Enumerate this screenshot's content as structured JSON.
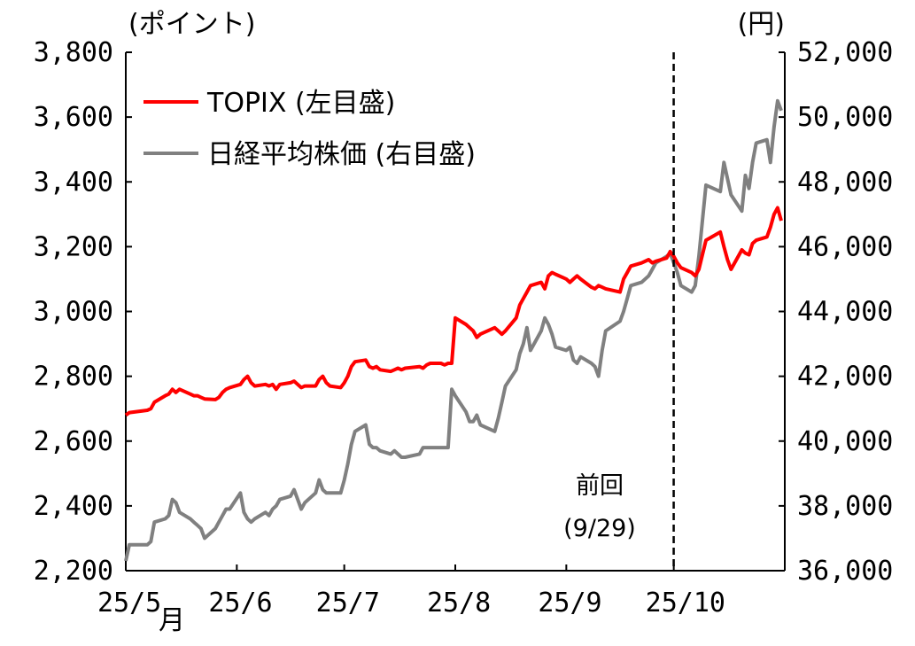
{
  "chart_data": {
    "type": "line",
    "left_unit": "(ポイント)",
    "right_unit": "(円)",
    "left_axis": {
      "ylim": [
        2200,
        3800
      ],
      "ticks": [
        "2,200",
        "2,400",
        "2,600",
        "2,800",
        "3,000",
        "3,200",
        "3,400",
        "3,600",
        "3,800"
      ]
    },
    "right_axis": {
      "ylim": [
        36000,
        52000
      ],
      "ticks": [
        "36,000",
        "38,000",
        "40,000",
        "42,000",
        "44,000",
        "46,000",
        "48,000",
        "50,000",
        "52,000"
      ]
    },
    "x_ticks": [
      {
        "label": "25/5",
        "suffix": "月",
        "date": "2025-05-01"
      },
      {
        "label": "25/6",
        "suffix": "",
        "date": "2025-06-01"
      },
      {
        "label": "25/7",
        "suffix": "",
        "date": "2025-07-01"
      },
      {
        "label": "25/8",
        "suffix": "",
        "date": "2025-08-01"
      },
      {
        "label": "25/9",
        "suffix": "",
        "date": "2025-09-01"
      },
      {
        "label": "25/10",
        "suffix": "",
        "date": "2025-10-01"
      }
    ],
    "x_range": [
      "2025-05-01",
      "2025-10-31"
    ],
    "grid": false,
    "legend_position": "top-left",
    "marker": {
      "date": "2025-09-29",
      "label": "前回",
      "sublabel": "(9/29)"
    },
    "series": [
      {
        "name": "TOPIX (左目盛)",
        "axis": "left",
        "color": "#ff0000",
        "points": [
          [
            "2025-05-01",
            2680
          ],
          [
            "2025-05-02",
            2688
          ],
          [
            "2025-05-07",
            2695
          ],
          [
            "2025-05-08",
            2700
          ],
          [
            "2025-05-09",
            2720
          ],
          [
            "2025-05-12",
            2740
          ],
          [
            "2025-05-13",
            2745
          ],
          [
            "2025-05-14",
            2760
          ],
          [
            "2025-05-15",
            2750
          ],
          [
            "2025-05-16",
            2760
          ],
          [
            "2025-05-19",
            2745
          ],
          [
            "2025-05-20",
            2740
          ],
          [
            "2025-05-21",
            2740
          ],
          [
            "2025-05-22",
            2735
          ],
          [
            "2025-05-23",
            2730
          ],
          [
            "2025-05-26",
            2728
          ],
          [
            "2025-05-27",
            2735
          ],
          [
            "2025-05-28",
            2750
          ],
          [
            "2025-05-29",
            2760
          ],
          [
            "2025-05-30",
            2765
          ],
          [
            "2025-06-02",
            2775
          ],
          [
            "2025-06-03",
            2790
          ],
          [
            "2025-06-04",
            2800
          ],
          [
            "2025-06-05",
            2780
          ],
          [
            "2025-06-06",
            2770
          ],
          [
            "2025-06-09",
            2775
          ],
          [
            "2025-06-10",
            2770
          ],
          [
            "2025-06-11",
            2775
          ],
          [
            "2025-06-12",
            2760
          ],
          [
            "2025-06-13",
            2775
          ],
          [
            "2025-06-16",
            2780
          ],
          [
            "2025-06-17",
            2785
          ],
          [
            "2025-06-18",
            2775
          ],
          [
            "2025-06-19",
            2765
          ],
          [
            "2025-06-20",
            2770
          ],
          [
            "2025-06-23",
            2770
          ],
          [
            "2025-06-24",
            2790
          ],
          [
            "2025-06-25",
            2800
          ],
          [
            "2025-06-26",
            2780
          ],
          [
            "2025-06-27",
            2770
          ],
          [
            "2025-06-30",
            2765
          ],
          [
            "2025-07-01",
            2780
          ],
          [
            "2025-07-02",
            2800
          ],
          [
            "2025-07-03",
            2830
          ],
          [
            "2025-07-04",
            2845
          ],
          [
            "2025-07-07",
            2850
          ],
          [
            "2025-07-08",
            2830
          ],
          [
            "2025-07-09",
            2825
          ],
          [
            "2025-07-10",
            2830
          ],
          [
            "2025-07-11",
            2820
          ],
          [
            "2025-07-14",
            2815
          ],
          [
            "2025-07-15",
            2820
          ],
          [
            "2025-07-16",
            2825
          ],
          [
            "2025-07-17",
            2820
          ],
          [
            "2025-07-18",
            2825
          ],
          [
            "2025-07-22",
            2830
          ],
          [
            "2025-07-23",
            2825
          ],
          [
            "2025-07-24",
            2835
          ],
          [
            "2025-07-25",
            2840
          ],
          [
            "2025-07-28",
            2840
          ],
          [
            "2025-07-29",
            2835
          ],
          [
            "2025-07-30",
            2840
          ],
          [
            "2025-07-31",
            2840
          ],
          [
            "2025-08-01",
            2980
          ],
          [
            "2025-08-04",
            2960
          ],
          [
            "2025-08-05",
            2950
          ],
          [
            "2025-08-06",
            2940
          ],
          [
            "2025-08-07",
            2920
          ],
          [
            "2025-08-08",
            2930
          ],
          [
            "2025-08-12",
            2950
          ],
          [
            "2025-08-13",
            2940
          ],
          [
            "2025-08-14",
            2930
          ],
          [
            "2025-08-15",
            2940
          ],
          [
            "2025-08-18",
            2980
          ],
          [
            "2025-08-19",
            3020
          ],
          [
            "2025-08-20",
            3040
          ],
          [
            "2025-08-21",
            3060
          ],
          [
            "2025-08-22",
            3080
          ],
          [
            "2025-08-25",
            3090
          ],
          [
            "2025-08-26",
            3070
          ],
          [
            "2025-08-27",
            3110
          ],
          [
            "2025-08-28",
            3120
          ],
          [
            "2025-08-29",
            3115
          ],
          [
            "2025-09-01",
            3100
          ],
          [
            "2025-09-02",
            3090
          ],
          [
            "2025-09-03",
            3100
          ],
          [
            "2025-09-04",
            3110
          ],
          [
            "2025-09-05",
            3100
          ],
          [
            "2025-09-08",
            3075
          ],
          [
            "2025-09-09",
            3070
          ],
          [
            "2025-09-10",
            3080
          ],
          [
            "2025-09-11",
            3075
          ],
          [
            "2025-09-12",
            3070
          ],
          [
            "2025-09-16",
            3060
          ],
          [
            "2025-09-17",
            3100
          ],
          [
            "2025-09-18",
            3120
          ],
          [
            "2025-09-19",
            3140
          ],
          [
            "2025-09-22",
            3150
          ],
          [
            "2025-09-24",
            3160
          ],
          [
            "2025-09-25",
            3150
          ],
          [
            "2025-09-26",
            3155
          ],
          [
            "2025-09-29",
            3165
          ],
          [
            "2025-09-30",
            3185
          ],
          [
            "2025-10-01",
            3170
          ],
          [
            "2025-10-02",
            3150
          ],
          [
            "2025-10-03",
            3135
          ],
          [
            "2025-10-06",
            3120
          ],
          [
            "2025-10-07",
            3110
          ],
          [
            "2025-10-08",
            3130
          ],
          [
            "2025-10-09",
            3175
          ],
          [
            "2025-10-10",
            3220
          ],
          [
            "2025-10-14",
            3245
          ],
          [
            "2025-10-15",
            3200
          ],
          [
            "2025-10-16",
            3160
          ],
          [
            "2025-10-17",
            3130
          ],
          [
            "2025-10-20",
            3190
          ],
          [
            "2025-10-21",
            3180
          ],
          [
            "2025-10-22",
            3175
          ],
          [
            "2025-10-23",
            3210
          ],
          [
            "2025-10-24",
            3220
          ],
          [
            "2025-10-27",
            3230
          ],
          [
            "2025-10-28",
            3260
          ],
          [
            "2025-10-29",
            3300
          ],
          [
            "2025-10-30",
            3320
          ],
          [
            "2025-10-31",
            3280
          ]
        ]
      },
      {
        "name": "日経平均株価 (右目盛)",
        "axis": "right",
        "color": "#808080",
        "points": [
          [
            "2025-05-01",
            36300
          ],
          [
            "2025-05-02",
            36800
          ],
          [
            "2025-05-07",
            36800
          ],
          [
            "2025-05-08",
            36900
          ],
          [
            "2025-05-09",
            37500
          ],
          [
            "2025-05-12",
            37600
          ],
          [
            "2025-05-13",
            37700
          ],
          [
            "2025-05-14",
            38200
          ],
          [
            "2025-05-15",
            38100
          ],
          [
            "2025-05-16",
            37800
          ],
          [
            "2025-05-19",
            37600
          ],
          [
            "2025-05-20",
            37500
          ],
          [
            "2025-05-21",
            37400
          ],
          [
            "2025-05-22",
            37300
          ],
          [
            "2025-05-23",
            37000
          ],
          [
            "2025-05-26",
            37300
          ],
          [
            "2025-05-27",
            37500
          ],
          [
            "2025-05-28",
            37700
          ],
          [
            "2025-05-29",
            37900
          ],
          [
            "2025-05-30",
            37900
          ],
          [
            "2025-06-02",
            38400
          ],
          [
            "2025-06-03",
            37800
          ],
          [
            "2025-06-04",
            37600
          ],
          [
            "2025-06-05",
            37500
          ],
          [
            "2025-06-06",
            37600
          ],
          [
            "2025-06-09",
            37800
          ],
          [
            "2025-06-10",
            37700
          ],
          [
            "2025-06-11",
            37900
          ],
          [
            "2025-06-12",
            38000
          ],
          [
            "2025-06-13",
            38200
          ],
          [
            "2025-06-16",
            38300
          ],
          [
            "2025-06-17",
            38500
          ],
          [
            "2025-06-18",
            38200
          ],
          [
            "2025-06-19",
            37900
          ],
          [
            "2025-06-20",
            38100
          ],
          [
            "2025-06-23",
            38400
          ],
          [
            "2025-06-24",
            38800
          ],
          [
            "2025-06-25",
            38500
          ],
          [
            "2025-06-26",
            38400
          ],
          [
            "2025-06-27",
            38400
          ],
          [
            "2025-06-30",
            38400
          ],
          [
            "2025-07-01",
            38800
          ],
          [
            "2025-07-02",
            39300
          ],
          [
            "2025-07-03",
            39900
          ],
          [
            "2025-07-04",
            40300
          ],
          [
            "2025-07-07",
            40500
          ],
          [
            "2025-07-08",
            39900
          ],
          [
            "2025-07-09",
            39800
          ],
          [
            "2025-07-10",
            39800
          ],
          [
            "2025-07-11",
            39700
          ],
          [
            "2025-07-14",
            39600
          ],
          [
            "2025-07-15",
            39700
          ],
          [
            "2025-07-16",
            39600
          ],
          [
            "2025-07-17",
            39500
          ],
          [
            "2025-07-18",
            39500
          ],
          [
            "2025-07-22",
            39600
          ],
          [
            "2025-07-23",
            39800
          ],
          [
            "2025-07-24",
            39800
          ],
          [
            "2025-07-25",
            39800
          ],
          [
            "2025-07-28",
            39800
          ],
          [
            "2025-07-29",
            39800
          ],
          [
            "2025-07-30",
            39800
          ],
          [
            "2025-07-31",
            41600
          ],
          [
            "2025-08-01",
            41400
          ],
          [
            "2025-08-04",
            40900
          ],
          [
            "2025-08-05",
            40600
          ],
          [
            "2025-08-06",
            40600
          ],
          [
            "2025-08-07",
            40800
          ],
          [
            "2025-08-08",
            40500
          ],
          [
            "2025-08-12",
            40300
          ],
          [
            "2025-08-13",
            40700
          ],
          [
            "2025-08-14",
            41200
          ],
          [
            "2025-08-15",
            41700
          ],
          [
            "2025-08-18",
            42200
          ],
          [
            "2025-08-19",
            42700
          ],
          [
            "2025-08-20",
            43000
          ],
          [
            "2025-08-21",
            43500
          ],
          [
            "2025-08-22",
            42800
          ],
          [
            "2025-08-25",
            43400
          ],
          [
            "2025-08-26",
            43800
          ],
          [
            "2025-08-27",
            43600
          ],
          [
            "2025-08-28",
            43300
          ],
          [
            "2025-08-29",
            42900
          ],
          [
            "2025-09-01",
            42800
          ],
          [
            "2025-09-02",
            42900
          ],
          [
            "2025-09-03",
            42500
          ],
          [
            "2025-09-04",
            42400
          ],
          [
            "2025-09-05",
            42600
          ],
          [
            "2025-09-08",
            42400
          ],
          [
            "2025-09-09",
            42300
          ],
          [
            "2025-09-10",
            42000
          ],
          [
            "2025-09-11",
            42800
          ],
          [
            "2025-09-12",
            43400
          ],
          [
            "2025-09-16",
            43700
          ],
          [
            "2025-09-17",
            44000
          ],
          [
            "2025-09-18",
            44400
          ],
          [
            "2025-09-19",
            44800
          ],
          [
            "2025-09-22",
            44900
          ],
          [
            "2025-09-24",
            45100
          ],
          [
            "2025-09-25",
            45300
          ],
          [
            "2025-09-26",
            45500
          ],
          [
            "2025-09-29",
            45700
          ],
          [
            "2025-09-30",
            45800
          ],
          [
            "2025-10-01",
            45500
          ],
          [
            "2025-10-02",
            45200
          ],
          [
            "2025-10-03",
            44800
          ],
          [
            "2025-10-06",
            44600
          ],
          [
            "2025-10-07",
            44800
          ],
          [
            "2025-10-08",
            45700
          ],
          [
            "2025-10-09",
            46800
          ],
          [
            "2025-10-10",
            47900
          ],
          [
            "2025-10-14",
            47700
          ],
          [
            "2025-10-15",
            48600
          ],
          [
            "2025-10-16",
            48100
          ],
          [
            "2025-10-17",
            47600
          ],
          [
            "2025-10-20",
            47100
          ],
          [
            "2025-10-21",
            48200
          ],
          [
            "2025-10-22",
            47800
          ],
          [
            "2025-10-23",
            48600
          ],
          [
            "2025-10-24",
            49200
          ],
          [
            "2025-10-27",
            49300
          ],
          [
            "2025-10-28",
            48600
          ],
          [
            "2025-10-29",
            49700
          ],
          [
            "2025-10-30",
            50500
          ],
          [
            "2025-10-31",
            50200
          ]
        ]
      }
    ]
  }
}
